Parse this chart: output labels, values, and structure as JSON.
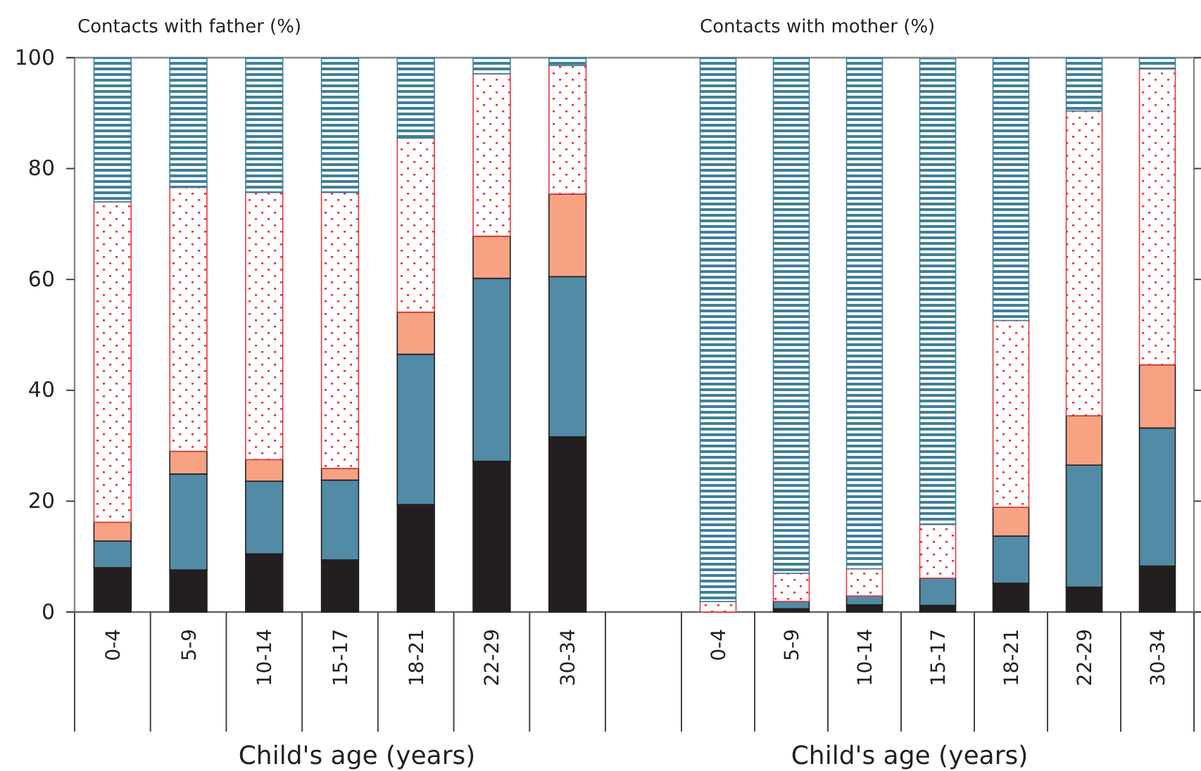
{
  "chart_data": [
    {
      "type": "bar",
      "stacked": true,
      "title": "Contacts with father (%)",
      "xlabel": "Child's age (years)",
      "categories": [
        "0-4",
        "5-9",
        "10-14",
        "15-17",
        "18-21",
        "22-29",
        "30-34"
      ],
      "ylim": [
        0,
        100
      ],
      "yticks": [
        0,
        20,
        40,
        60,
        80,
        100
      ],
      "series": [
        {
          "color": "#231f20",
          "values": [
            8.0,
            7.6,
            10.5,
            9.4,
            19.4,
            27.2,
            31.6
          ]
        },
        {
          "color": "#528ba5",
          "values": [
            4.8,
            17.3,
            13.1,
            14.4,
            27.1,
            33.0,
            28.9
          ]
        },
        {
          "color": "#f6a283",
          "values": [
            3.4,
            4.1,
            3.9,
            2.1,
            7.6,
            7.6,
            14.9
          ]
        },
        {
          "color": "#e8363a",
          "values": [
            57.8,
            47.6,
            48.2,
            49.8,
            31.4,
            29.3,
            23.2
          ]
        },
        {
          "color": "#3f7f99",
          "values": [
            26.0,
            23.4,
            24.3,
            24.3,
            14.5,
            2.9,
            1.4
          ]
        }
      ]
    },
    {
      "type": "bar",
      "stacked": true,
      "title": "Contacts with mother (%)",
      "xlabel": "Child's age (years)",
      "categories": [
        "0-4",
        "5-9",
        "10-14",
        "15-17",
        "18-21",
        "22-29",
        "30-34"
      ],
      "ylim": [
        0,
        100
      ],
      "yticks": [
        0,
        20,
        40,
        60,
        80,
        100
      ],
      "tick_labels": "x",
      "series": [
        {
          "color": "#231f20",
          "values": [
            0,
            0.6,
            1.3,
            1.2,
            5.2,
            4.5,
            8.3
          ]
        },
        {
          "color": "#528ba5",
          "values": [
            0,
            1.3,
            1.6,
            4.9,
            8.5,
            22.0,
            24.9
          ]
        },
        {
          "color": "#f6a283",
          "values": [
            0,
            0,
            0,
            0,
            5.2,
            8.9,
            11.4
          ]
        },
        {
          "color": "#e8363a",
          "values": [
            1.9,
            5.1,
            4.9,
            9.7,
            33.7,
            55.0,
            53.4
          ]
        },
        {
          "color": "#3f7f99",
          "values": [
            98.1,
            93.0,
            92.2,
            84.0,
            47.4,
            9.6,
            2.0
          ]
        }
      ]
    }
  ]
}
